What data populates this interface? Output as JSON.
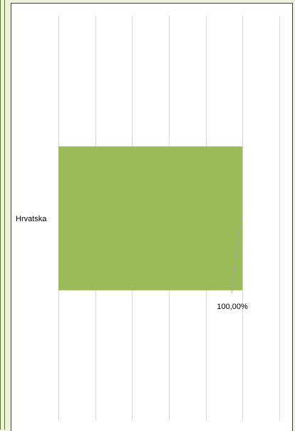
{
  "chart_data": {
    "type": "bar",
    "orientation": "horizontal",
    "categories": [
      "Hrvatska"
    ],
    "values": [
      1.0
    ],
    "data_labels": [
      "100,00%"
    ],
    "xlim": [
      0,
      1.2
    ],
    "gridlines": 7,
    "grid": true,
    "legend": "none",
    "colors": {
      "bar": "#9bbb59",
      "grid": "#d9d9d9",
      "leader": "#a6a6a6"
    }
  }
}
